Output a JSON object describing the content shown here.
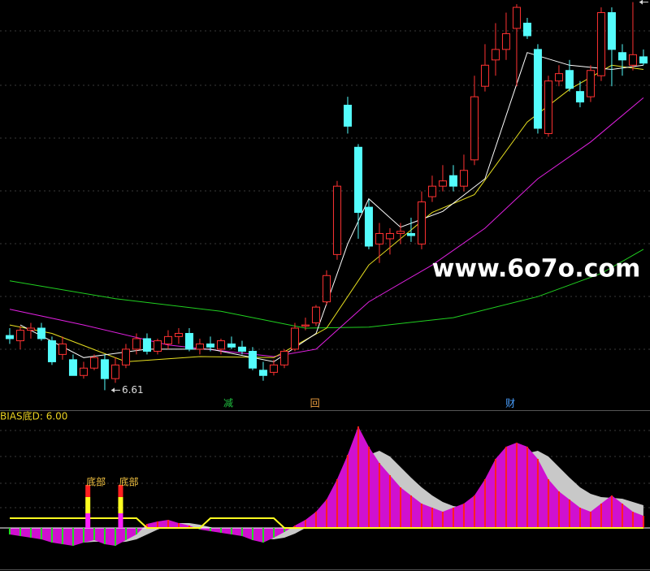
{
  "watermark": "www.6o7o.com",
  "chart_data": [
    {
      "type": "candlestick",
      "xlim": [
        -0.92,
        60.62
      ],
      "ylim": [
        6.42,
        10.32
      ],
      "up_color": "#ff3232",
      "down_color": "#54fcfc",
      "candles": [
        [
          7.13,
          7.2,
          7.05,
          7.1
        ],
        [
          7.08,
          7.22,
          7.0,
          7.18
        ],
        [
          7.18,
          7.25,
          7.1,
          7.2
        ],
        [
          7.2,
          7.25,
          7.08,
          7.1
        ],
        [
          7.08,
          7.12,
          6.85,
          6.88
        ],
        [
          6.95,
          7.12,
          6.9,
          7.05
        ],
        [
          6.9,
          6.95,
          6.75,
          6.75
        ],
        [
          6.75,
          6.88,
          6.72,
          6.82
        ],
        [
          6.82,
          6.95,
          6.8,
          6.92
        ],
        [
          6.9,
          6.95,
          6.61,
          6.72
        ],
        [
          6.72,
          6.92,
          6.68,
          6.85
        ],
        [
          6.85,
          7.05,
          6.82,
          7.0
        ],
        [
          7.0,
          7.15,
          6.95,
          7.1
        ],
        [
          7.1,
          7.15,
          6.95,
          6.98
        ],
        [
          6.98,
          7.1,
          6.95,
          7.08
        ],
        [
          7.05,
          7.18,
          7.0,
          7.12
        ],
        [
          7.12,
          7.2,
          7.05,
          7.15
        ],
        [
          7.15,
          7.2,
          6.98,
          7.0
        ],
        [
          7.0,
          7.1,
          6.95,
          7.05
        ],
        [
          7.05,
          7.12,
          6.98,
          7.02
        ],
        [
          7.0,
          7.1,
          6.95,
          7.08
        ],
        [
          7.05,
          7.12,
          7.0,
          7.02
        ],
        [
          7.02,
          7.08,
          6.95,
          6.98
        ],
        [
          6.98,
          7.02,
          6.8,
          6.82
        ],
        [
          6.8,
          6.88,
          6.7,
          6.75
        ],
        [
          6.78,
          6.9,
          6.75,
          6.85
        ],
        [
          6.85,
          7.0,
          6.82,
          6.98
        ],
        [
          7.0,
          7.25,
          6.98,
          7.2
        ],
        [
          7.22,
          7.3,
          7.18,
          7.23
        ],
        [
          7.25,
          7.42,
          7.22,
          7.4
        ],
        [
          7.45,
          7.75,
          7.42,
          7.7
        ],
        [
          7.9,
          8.6,
          7.85,
          8.55
        ],
        [
          9.32,
          9.4,
          9.05,
          9.12
        ],
        [
          8.92,
          8.95,
          8.05,
          8.3
        ],
        [
          8.35,
          8.42,
          7.95,
          7.98
        ],
        [
          8.0,
          8.2,
          7.82,
          8.1
        ],
        [
          8.05,
          8.15,
          7.9,
          8.1
        ],
        [
          8.1,
          8.2,
          8.0,
          8.12
        ],
        [
          8.1,
          8.25,
          8.02,
          8.08
        ],
        [
          8.0,
          8.5,
          7.95,
          8.4
        ],
        [
          8.45,
          8.65,
          8.4,
          8.55
        ],
        [
          8.55,
          8.75,
          8.5,
          8.6
        ],
        [
          8.65,
          8.75,
          8.5,
          8.55
        ],
        [
          8.55,
          8.85,
          8.5,
          8.7
        ],
        [
          8.8,
          9.6,
          8.75,
          9.4
        ],
        [
          9.5,
          9.9,
          9.45,
          9.7
        ],
        [
          9.75,
          10.1,
          9.6,
          9.85
        ],
        [
          9.85,
          10.2,
          9.75,
          10.0
        ],
        [
          10.05,
          10.28,
          9.5,
          10.25
        ],
        [
          10.1,
          10.15,
          9.95,
          9.98
        ],
        [
          9.85,
          9.9,
          9.05,
          9.1
        ],
        [
          9.05,
          9.6,
          9.02,
          9.55
        ],
        [
          9.55,
          9.7,
          9.5,
          9.62
        ],
        [
          9.65,
          9.75,
          9.45,
          9.48
        ],
        [
          9.45,
          9.55,
          9.3,
          9.35
        ],
        [
          9.4,
          9.7,
          9.35,
          9.65
        ],
        [
          9.6,
          10.25,
          9.55,
          10.2
        ],
        [
          10.2,
          10.25,
          9.5,
          9.85
        ],
        [
          9.82,
          9.9,
          9.6,
          9.75
        ],
        [
          9.7,
          10.3,
          9.65,
          9.8
        ],
        [
          9.78,
          9.85,
          9.7,
          9.72
        ]
      ],
      "lines": [
        {
          "color": "#20d020",
          "x": [
            0,
            10,
            20,
            28,
            34,
            42,
            50,
            56,
            60
          ],
          "values": [
            7.65,
            7.48,
            7.36,
            7.2,
            7.21,
            7.3,
            7.5,
            7.72,
            7.95
          ]
        },
        {
          "color": "#e020e0",
          "x": [
            0,
            7,
            15,
            25,
            29,
            34,
            40,
            45,
            50,
            55,
            60
          ],
          "values": [
            7.38,
            7.23,
            7.04,
            6.93,
            7.0,
            7.45,
            7.8,
            8.15,
            8.62,
            8.97,
            9.39
          ]
        },
        {
          "color": "#e8e020",
          "x": [
            0,
            4,
            11,
            18,
            25,
            30,
            34,
            40,
            44,
            49,
            53,
            57,
            60
          ],
          "values": [
            7.23,
            7.15,
            6.88,
            6.93,
            6.92,
            7.2,
            7.8,
            8.3,
            8.47,
            9.16,
            9.47,
            9.7,
            9.66
          ]
        },
        {
          "color": "#ffffff",
          "x": [
            1,
            7,
            13,
            19,
            25,
            29,
            32,
            34,
            37,
            41,
            45,
            49,
            53,
            57,
            60
          ],
          "values": [
            7.23,
            6.92,
            7.0,
            7.0,
            6.88,
            7.15,
            8.0,
            8.43,
            8.16,
            8.31,
            8.62,
            9.82,
            9.7,
            9.66,
            9.7
          ]
        }
      ],
      "annotations": [
        {
          "x": 20.7,
          "text": "减",
          "color": "#20c040"
        },
        {
          "x": 28.9,
          "text": "回",
          "color": "#f0a040"
        },
        {
          "x": 47.4,
          "text": "财",
          "color": "#4aa0ff"
        }
      ]
    },
    {
      "type": "bar",
      "title": "BIAS底D: 6.00",
      "xlim": [
        -0.92,
        60.62
      ],
      "ylim": [
        -53,
        145
      ],
      "up_color": "#ff2020",
      "down_color": "#20e020",
      "values": [
        -8,
        -10,
        -12,
        -14,
        -18,
        -20,
        -22,
        -18,
        -15,
        -20,
        -22,
        -15,
        -8,
        5,
        8,
        10,
        6,
        3,
        -2,
        -4,
        -6,
        -8,
        -10,
        -15,
        -18,
        -12,
        -5,
        3,
        10,
        20,
        35,
        60,
        90,
        125,
        100,
        80,
        65,
        50,
        40,
        30,
        25,
        20,
        25,
        30,
        40,
        60,
        85,
        100,
        105,
        100,
        85,
        60,
        45,
        35,
        25,
        20,
        30,
        40,
        30,
        20,
        15
      ],
      "series": [
        {
          "color": "#c8c8c8",
          "values": [
            -5,
            -7,
            -9,
            -11,
            -13,
            -15,
            -17,
            -18,
            -17,
            -17,
            -18,
            -17,
            -14,
            -8,
            -2,
            3,
            6,
            6,
            4,
            1,
            -2,
            -5,
            -7,
            -10,
            -13,
            -14,
            -12,
            -7,
            0,
            8,
            18,
            30,
            50,
            75,
            90,
            95,
            88,
            75,
            62,
            50,
            40,
            32,
            27,
            25,
            28,
            38,
            55,
            72,
            85,
            92,
            95,
            88,
            75,
            62,
            50,
            42,
            38,
            37,
            36,
            32,
            28
          ]
        },
        {
          "color": "#ffff20",
          "values": [
            12,
            12,
            12,
            12,
            12,
            12,
            12,
            12,
            12,
            12,
            12,
            12,
            12,
            0,
            0,
            0,
            0,
            0,
            0,
            12,
            12,
            12,
            12,
            12,
            12,
            12,
            0,
            0,
            0,
            0,
            0,
            0,
            0,
            0,
            0,
            0,
            0,
            0,
            0,
            0,
            0,
            0,
            0,
            0,
            0,
            0,
            0,
            0,
            0,
            0,
            0,
            0,
            0,
            0,
            0,
            0,
            0,
            0,
            0,
            0,
            0
          ]
        }
      ],
      "annotations": [
        {
          "x": 7.4,
          "text": "底部"
        },
        {
          "x": 10.5,
          "text": "底部"
        }
      ]
    }
  ]
}
